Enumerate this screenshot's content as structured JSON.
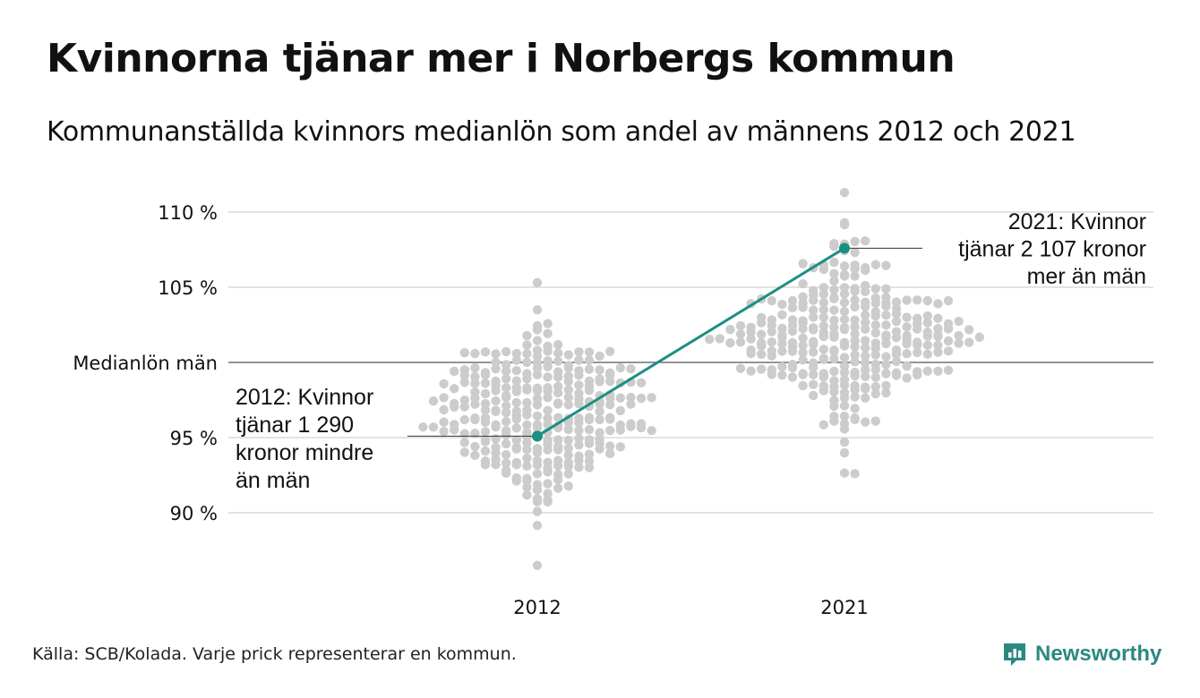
{
  "title": "Kvinnorna tjänar mer i Norbergs kommun",
  "subtitle": "Kommunanställda kvinnors medianlön som andel av männens 2012 och 2021",
  "footer": "Källa: SCB/Kolada. Varje prick representerar en kommun.",
  "logo": {
    "text": "Newsworthy",
    "icon": "newsworthy-logo-icon",
    "color": "#2a8a80"
  },
  "colors": {
    "highlight": "#1a8f82",
    "dots": "#cccccc",
    "grid": "#e3e3e3",
    "reference": "#555555"
  },
  "chart_data": {
    "type": "scatter",
    "categories": [
      "2012",
      "2021"
    ],
    "ylim": [
      86,
      111
    ],
    "yticks": [
      {
        "value": 90,
        "label": "90 %"
      },
      {
        "value": 95,
        "label": "95 %"
      },
      {
        "value": 100,
        "label": "Medianlön män"
      },
      {
        "value": 105,
        "label": "105 %"
      },
      {
        "value": 110,
        "label": "110 %"
      }
    ],
    "reference_line": {
      "value": 100,
      "label": "Medianlön män"
    },
    "highlight": {
      "name": "Norbergs kommun",
      "values": [
        95.1,
        107.6
      ]
    },
    "annotations": [
      {
        "category": "2012",
        "lines": [
          "2012: Kvinnor",
          "tjänar 1 290",
          "kronor mindre",
          "än män"
        ]
      },
      {
        "category": "2021",
        "lines": [
          "2021: Kvinnor",
          "tjänar 2 107 kronor",
          "mer än män"
        ]
      }
    ],
    "distributions": [
      {
        "category": "2012",
        "median": 96.5,
        "sd": 2.8,
        "min": 86.5,
        "max": 105.3,
        "count": 290
      },
      {
        "category": "2021",
        "median": 101.8,
        "sd": 2.7,
        "min": 92.6,
        "max": 111.3,
        "count": 290
      }
    ],
    "grid": true
  }
}
